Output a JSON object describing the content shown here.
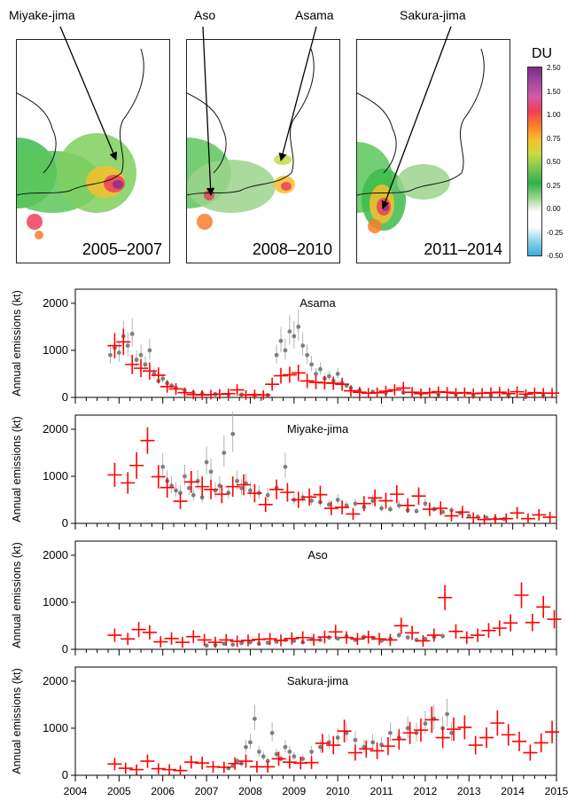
{
  "maps": {
    "periods": [
      "2005–2007",
      "2008–2010",
      "2011–2014"
    ],
    "volcano_labels": [
      "Miyake-jima",
      "Aso",
      "Asama",
      "Sakura-jima"
    ],
    "colorbar": {
      "title": "DU",
      "ticks": [
        "2.50",
        "1.50",
        "1.00",
        "0.75",
        "0.50",
        "0.25",
        "0.00",
        "-0.25",
        "-0.50"
      ],
      "colors": [
        "#7a2c86",
        "#a448a0",
        "#d25aa7",
        "#ee3e5c",
        "#f97c2a",
        "#f5c02c",
        "#c7db45",
        "#7dc451",
        "#2fb04d",
        "#9bd38d",
        "#ffffff",
        "#ffffff",
        "#8fd3ea",
        "#39aee0"
      ]
    }
  },
  "chart_data": [
    {
      "type": "scatter",
      "title": "Asama",
      "ylabel": "Annual emissions (kt)",
      "ylim": [
        0,
        2300
      ],
      "xlim": [
        2004,
        2015
      ],
      "yticks": [
        0,
        1000,
        2000
      ],
      "xticks": [
        "2004",
        "2005",
        "2006",
        "2007",
        "2008",
        "2009",
        "2010",
        "2011",
        "2012",
        "2013",
        "2014",
        "2015"
      ],
      "series": [
        {
          "color": "#ff0000",
          "x": [
            2004.9,
            2005.1,
            2005.3,
            2005.5,
            2005.7,
            2005.9,
            2006.1,
            2006.3,
            2006.5,
            2006.7,
            2006.9,
            2007.1,
            2007.3,
            2007.5,
            2007.7,
            2007.9,
            2008.1,
            2008.3,
            2008.5,
            2008.7,
            2008.9,
            2009.1,
            2009.3,
            2009.5,
            2009.7,
            2009.9,
            2010.1,
            2010.3,
            2010.5,
            2010.7,
            2010.9,
            2011.1,
            2011.3,
            2011.5,
            2011.7,
            2011.9,
            2012.1,
            2012.3,
            2012.5,
            2012.7,
            2012.9,
            2013.1,
            2013.3,
            2013.5,
            2013.7,
            2013.9,
            2014.1,
            2014.3,
            2014.5,
            2014.7,
            2014.9
          ],
          "y": [
            1100,
            1180,
            700,
            620,
            560,
            470,
            230,
            180,
            100,
            60,
            50,
            60,
            70,
            80,
            160,
            50,
            60,
            50,
            280,
            460,
            480,
            520,
            350,
            320,
            310,
            300,
            280,
            140,
            110,
            90,
            100,
            130,
            160,
            200,
            110,
            80,
            100,
            120,
            110,
            90,
            100,
            80,
            90,
            100,
            110,
            80,
            120,
            70,
            100,
            90,
            90
          ]
        },
        {
          "color": "#7f7f7f",
          "x": [
            2004.8,
            2004.9,
            2005.0,
            2005.1,
            2005.2,
            2005.3,
            2005.4,
            2005.5,
            2005.6,
            2005.7,
            2005.8,
            2005.9,
            2006.0,
            2006.1,
            2006.2,
            2006.3,
            2006.5,
            2006.7,
            2006.9,
            2007.2,
            2007.5,
            2007.8,
            2008.1,
            2008.4,
            2008.6,
            2008.7,
            2008.8,
            2008.9,
            2009.0,
            2009.1,
            2009.2,
            2009.3,
            2009.4,
            2009.5,
            2009.6,
            2009.7,
            2009.8,
            2009.9,
            2010.0,
            2010.1,
            2010.2,
            2010.3,
            2010.5,
            2010.8,
            2011.1,
            2011.5,
            2011.9,
            2012.3,
            2012.7,
            2013.1,
            2013.5,
            2013.9,
            2014.3,
            2014.7
          ],
          "y": [
            900,
            1050,
            950,
            1300,
            1100,
            1350,
            800,
            900,
            700,
            1000,
            500,
            350,
            400,
            300,
            250,
            200,
            150,
            100,
            80,
            70,
            60,
            60,
            40,
            50,
            900,
            1200,
            1000,
            1400,
            1300,
            1500,
            1100,
            900,
            700,
            500,
            600,
            400,
            450,
            350,
            500,
            300,
            250,
            200,
            150,
            120,
            100,
            100,
            80,
            60,
            60,
            50,
            50,
            40,
            40,
            40
          ]
        }
      ]
    },
    {
      "type": "scatter",
      "title": "Miyake-jima",
      "ylabel": "Annual emissions (kt)",
      "ylim": [
        0,
        2300
      ],
      "xlim": [
        2004,
        2015
      ],
      "yticks": [
        0,
        1000,
        2000
      ],
      "xticks": [
        "2004",
        "2005",
        "2006",
        "2007",
        "2008",
        "2009",
        "2010",
        "2011",
        "2012",
        "2013",
        "2014",
        "2015"
      ],
      "series": [
        {
          "color": "#ff0000",
          "x": [
            2004.9,
            2005.2,
            2005.4,
            2005.65,
            2005.9,
            2006.1,
            2006.4,
            2006.65,
            2006.9,
            2007.1,
            2007.35,
            2007.6,
            2007.85,
            2008.1,
            2008.35,
            2008.6,
            2008.85,
            2009.1,
            2009.35,
            2009.6,
            2009.85,
            2010.1,
            2010.35,
            2010.6,
            2010.85,
            2011.1,
            2011.35,
            2011.6,
            2011.85,
            2012.1,
            2012.35,
            2012.6,
            2012.85,
            2013.1,
            2013.35,
            2013.6,
            2013.85,
            2014.1,
            2014.35,
            2014.6,
            2014.85
          ],
          "y": [
            1030,
            860,
            1230,
            1760,
            990,
            760,
            470,
            880,
            780,
            720,
            620,
            780,
            820,
            640,
            400,
            720,
            660,
            500,
            560,
            610,
            320,
            340,
            200,
            420,
            540,
            480,
            620,
            380,
            580,
            300,
            320,
            160,
            240,
            120,
            80,
            90,
            100,
            220,
            100,
            180,
            130
          ]
        },
        {
          "color": "#7f7f7f",
          "x": [
            2006.0,
            2006.1,
            2006.2,
            2006.3,
            2006.4,
            2006.5,
            2006.6,
            2006.7,
            2006.8,
            2006.9,
            2007.0,
            2007.1,
            2007.2,
            2007.3,
            2007.4,
            2007.5,
            2007.6,
            2007.7,
            2007.8,
            2007.9,
            2008.0,
            2008.2,
            2008.4,
            2008.6,
            2008.8,
            2009.0,
            2009.2,
            2009.4,
            2009.6,
            2009.8,
            2010.0,
            2010.2,
            2010.4,
            2010.6,
            2010.8,
            2011.0,
            2011.2,
            2011.4,
            2011.6,
            2011.8,
            2012.0,
            2012.2,
            2012.4,
            2012.6,
            2012.8,
            2013.0,
            2013.2,
            2013.4,
            2013.6,
            2013.8
          ],
          "y": [
            1200,
            900,
            800,
            700,
            650,
            1000,
            750,
            600,
            900,
            550,
            1300,
            1100,
            700,
            800,
            1500,
            650,
            1900,
            900,
            750,
            850,
            700,
            650,
            600,
            750,
            1200,
            500,
            550,
            480,
            450,
            400,
            500,
            380,
            420,
            350,
            480,
            320,
            300,
            380,
            280,
            260,
            420,
            300,
            240,
            280,
            220,
            160,
            140,
            120,
            100,
            90
          ]
        }
      ]
    },
    {
      "type": "scatter",
      "title": "Aso",
      "ylabel": "Annual emissions (kt)",
      "ylim": [
        0,
        2300
      ],
      "xlim": [
        2004,
        2015
      ],
      "yticks": [
        0,
        1000,
        2000
      ],
      "xticks": [
        "2004",
        "2005",
        "2006",
        "2007",
        "2008",
        "2009",
        "2010",
        "2011",
        "2012",
        "2013",
        "2014",
        "2015"
      ],
      "series": [
        {
          "color": "#ff0000",
          "x": [
            2004.9,
            2005.2,
            2005.45,
            2005.7,
            2005.95,
            2006.2,
            2006.45,
            2006.7,
            2006.95,
            2007.2,
            2007.45,
            2007.7,
            2007.95,
            2008.2,
            2008.45,
            2008.7,
            2008.95,
            2009.2,
            2009.45,
            2009.7,
            2009.95,
            2010.2,
            2010.45,
            2010.7,
            2010.95,
            2011.2,
            2011.45,
            2011.7,
            2011.95,
            2012.2,
            2012.45,
            2012.7,
            2012.95,
            2013.2,
            2013.45,
            2013.7,
            2013.95,
            2014.2,
            2014.45,
            2014.7,
            2014.95
          ],
          "y": [
            300,
            220,
            420,
            360,
            160,
            230,
            150,
            270,
            200,
            150,
            200,
            170,
            190,
            210,
            220,
            190,
            230,
            250,
            200,
            260,
            370,
            250,
            220,
            260,
            220,
            200,
            500,
            350,
            180,
            300,
            1100,
            380,
            250,
            300,
            400,
            450,
            560,
            1150,
            570,
            900,
            640
          ]
        },
        {
          "color": "#7f7f7f",
          "x": [
            2007.0,
            2007.2,
            2007.4,
            2007.6,
            2007.8,
            2008.0,
            2008.2,
            2008.4,
            2008.6,
            2008.8,
            2009.0,
            2009.2,
            2009.4,
            2009.6,
            2009.8,
            2010.0,
            2010.2,
            2010.4,
            2010.6,
            2010.8,
            2011.0,
            2011.2,
            2011.4,
            2011.6,
            2011.8,
            2012.0,
            2012.2,
            2012.4
          ],
          "y": [
            80,
            90,
            120,
            100,
            130,
            150,
            120,
            140,
            160,
            200,
            180,
            150,
            220,
            200,
            250,
            230,
            280,
            200,
            260,
            240,
            180,
            220,
            300,
            250,
            200,
            220,
            260,
            280
          ]
        }
      ]
    },
    {
      "type": "scatter",
      "title": "Sakura-jima",
      "ylabel": "Annual emissions (kt)",
      "ylim": [
        0,
        2300
      ],
      "xlim": [
        2004,
        2015
      ],
      "yticks": [
        0,
        1000,
        2000
      ],
      "xticks": [
        "2004",
        "2005",
        "2006",
        "2007",
        "2008",
        "2009",
        "2010",
        "2011",
        "2012",
        "2013",
        "2014",
        "2015"
      ],
      "series": [
        {
          "color": "#ff0000",
          "x": [
            2004.9,
            2005.15,
            2005.4,
            2005.65,
            2005.9,
            2006.15,
            2006.4,
            2006.65,
            2006.9,
            2007.15,
            2007.4,
            2007.65,
            2007.9,
            2008.15,
            2008.4,
            2008.65,
            2008.9,
            2009.15,
            2009.4,
            2009.65,
            2009.9,
            2010.15,
            2010.4,
            2010.65,
            2010.9,
            2011.15,
            2011.4,
            2011.65,
            2011.9,
            2012.15,
            2012.4,
            2012.65,
            2012.9,
            2013.15,
            2013.4,
            2013.65,
            2013.9,
            2014.15,
            2014.4,
            2014.65,
            2014.9
          ],
          "y": [
            240,
            150,
            120,
            300,
            140,
            120,
            100,
            280,
            260,
            180,
            170,
            250,
            300,
            180,
            180,
            350,
            280,
            260,
            270,
            680,
            640,
            940,
            480,
            560,
            520,
            620,
            760,
            900,
            960,
            1180,
            800,
            980,
            1020,
            640,
            800,
            1110,
            860,
            720,
            480,
            690,
            920
          ]
        },
        {
          "color": "#7f7f7f",
          "x": [
            2007.5,
            2007.6,
            2007.7,
            2007.8,
            2007.9,
            2008.0,
            2008.1,
            2008.2,
            2008.3,
            2008.4,
            2008.5,
            2008.6,
            2008.7,
            2008.8,
            2008.9,
            2009.0,
            2009.2,
            2009.4,
            2009.6,
            2009.8,
            2010.0,
            2010.2,
            2010.4,
            2010.6,
            2010.8,
            2011.0,
            2011.2,
            2011.4,
            2011.6,
            2011.8,
            2012.0,
            2012.2,
            2012.4,
            2012.5,
            2012.6
          ],
          "y": [
            150,
            200,
            300,
            250,
            600,
            700,
            1200,
            500,
            400,
            300,
            900,
            450,
            350,
            600,
            500,
            400,
            350,
            500,
            600,
            700,
            800,
            900,
            750,
            600,
            700,
            650,
            900,
            800,
            1000,
            900,
            1100,
            1200,
            1000,
            1300,
            900
          ]
        }
      ]
    }
  ]
}
